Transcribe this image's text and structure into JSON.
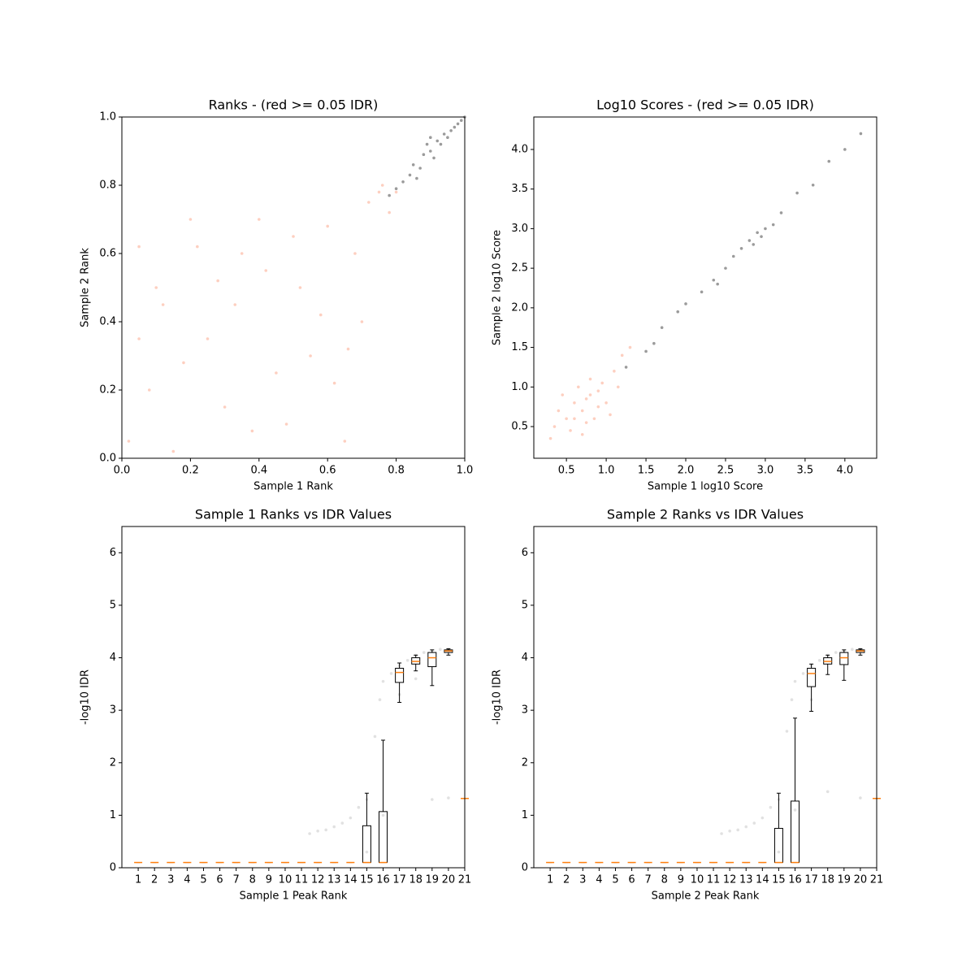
{
  "chart_data": [
    {
      "type": "scatter",
      "title": "Ranks - (red >= 0.05 IDR)",
      "x_label": "Sample 1 Rank",
      "y_label": "Sample 2 Rank",
      "xlim": [
        0,
        1
      ],
      "ylim": [
        0,
        1
      ],
      "xticks": [
        {
          "value": 0,
          "label": "0.0"
        },
        0.2,
        0.4,
        0.6,
        0.8,
        {
          "value": 1,
          "label": "1.0"
        }
      ],
      "yticks": [
        {
          "value": 0,
          "label": "0.0"
        },
        0.2,
        0.4,
        0.6,
        0.8,
        {
          "value": 1,
          "label": "1.0"
        }
      ],
      "series": [
        {
          "color": "#fa9474",
          "x": [
            0.05,
            0.12,
            0.2,
            0.3,
            0.42,
            0.55,
            0.65,
            0.08,
            0.25,
            0.35,
            0.48,
            0.6,
            0.7,
            0.75,
            0.78,
            0.02,
            0.15,
            0.33,
            0.45,
            0.52,
            0.62,
            0.68,
            0.72,
            0.1,
            0.18,
            0.28,
            0.38,
            0.58,
            0.66,
            0.4,
            0.22,
            0.05,
            0.5,
            0.8,
            0.76
          ],
          "y": [
            0.62,
            0.45,
            0.7,
            0.15,
            0.55,
            0.3,
            0.05,
            0.2,
            0.35,
            0.6,
            0.1,
            0.68,
            0.4,
            0.78,
            0.72,
            0.05,
            0.02,
            0.45,
            0.25,
            0.5,
            0.22,
            0.6,
            0.75,
            0.5,
            0.28,
            0.52,
            0.08,
            0.42,
            0.32,
            0.7,
            0.62,
            0.35,
            0.65,
            0.78,
            0.8
          ]
        },
        {
          "color": "#222222",
          "x": [
            0.78,
            0.8,
            0.82,
            0.84,
            0.85,
            0.87,
            0.88,
            0.9,
            0.91,
            0.92,
            0.93,
            0.94,
            0.95,
            0.96,
            0.97,
            0.98,
            0.99,
            1.0,
            0.89,
            0.9,
            0.86
          ],
          "y": [
            0.77,
            0.79,
            0.81,
            0.83,
            0.86,
            0.85,
            0.89,
            0.9,
            0.88,
            0.93,
            0.92,
            0.95,
            0.94,
            0.96,
            0.97,
            0.98,
            0.99,
            1.0,
            0.92,
            0.94,
            0.82
          ]
        }
      ]
    },
    {
      "type": "scatter",
      "title": "Log10 Scores - (red >= 0.05 IDR)",
      "x_label": "Sample 1 log10 Score",
      "y_label": "Sample 2 log10 Score",
      "xlim": [
        0.09,
        4.4
      ],
      "ylim": [
        0.1,
        4.41
      ],
      "xticks": [
        0.5,
        {
          "value": 1,
          "label": "1.0"
        },
        1.5,
        {
          "value": 2,
          "label": "2.0"
        },
        2.5,
        {
          "value": 3,
          "label": "3.0"
        },
        3.5,
        {
          "value": 4,
          "label": "4.0"
        }
      ],
      "yticks": [
        0.5,
        {
          "value": 1,
          "label": "1.0"
        },
        1.5,
        {
          "value": 2,
          "label": "2.0"
        },
        2.5,
        {
          "value": 3,
          "label": "3.0"
        },
        3.5,
        {
          "value": 4,
          "label": "4.0"
        }
      ],
      "series": [
        {
          "color": "#fa9474",
          "x": [
            0.5,
            0.6,
            0.7,
            0.8,
            0.9,
            0.55,
            0.75,
            0.65,
            0.85,
            1.0,
            0.4,
            0.35,
            0.95,
            1.1,
            1.2,
            0.45,
            0.7,
            0.8,
            1.05,
            0.6,
            0.75,
            0.9,
            1.3,
            1.15,
            0.3
          ],
          "y": [
            0.6,
            0.8,
            0.7,
            0.9,
            0.75,
            0.45,
            0.55,
            1.0,
            0.6,
            0.8,
            0.7,
            0.5,
            1.05,
            1.2,
            1.4,
            0.9,
            0.4,
            1.1,
            0.65,
            0.6,
            0.85,
            0.95,
            1.5,
            1.0,
            0.35
          ]
        },
        {
          "color": "#222222",
          "x": [
            1.25,
            1.5,
            1.7,
            1.9,
            2.0,
            2.2,
            2.35,
            2.5,
            2.6,
            2.7,
            2.8,
            2.85,
            2.9,
            2.95,
            3.0,
            3.1,
            3.2,
            3.4,
            3.6,
            3.8,
            4.0,
            4.2,
            2.4,
            1.6
          ],
          "y": [
            1.25,
            1.45,
            1.75,
            1.95,
            2.05,
            2.2,
            2.35,
            2.5,
            2.65,
            2.75,
            2.85,
            2.8,
            2.95,
            2.9,
            3.0,
            3.05,
            3.2,
            3.45,
            3.55,
            3.85,
            4.0,
            4.2,
            2.3,
            1.55
          ]
        }
      ]
    },
    {
      "type": "box",
      "title": "Sample 1 Ranks vs IDR Values",
      "x_label": "Sample 1 Peak Rank",
      "y_label": "-log10 IDR",
      "xlim": [
        0,
        21
      ],
      "ylim": [
        0,
        6.5
      ],
      "xticks": [
        1,
        2,
        3,
        4,
        5,
        6,
        7,
        8,
        9,
        10,
        11,
        12,
        13,
        14,
        15,
        16,
        17,
        18,
        19,
        20,
        21
      ],
      "yticks": [
        0,
        1,
        2,
        3,
        4,
        5,
        6
      ],
      "points": {
        "color": "#888888",
        "x": [
          11.5,
          12,
          12.5,
          13,
          13.5,
          14,
          14.5,
          15,
          15.5,
          15.8,
          16,
          16.5,
          17,
          17.5,
          18,
          18.5,
          19,
          19.5,
          20,
          19,
          20,
          18,
          17,
          16,
          15
        ],
        "y": [
          0.65,
          0.7,
          0.72,
          0.78,
          0.85,
          0.95,
          1.15,
          1.3,
          2.5,
          3.2,
          3.55,
          3.7,
          3.85,
          3.95,
          4.05,
          4.1,
          4.13,
          4.16,
          4.17,
          1.3,
          1.33,
          3.6,
          3.3,
          1.0,
          0.3
        ]
      },
      "positions": [
        1,
        2,
        3,
        4,
        5,
        6,
        7,
        8,
        9,
        10,
        11,
        12,
        13,
        14,
        15,
        16,
        17,
        18,
        19,
        20,
        21
      ],
      "boxes": [
        {
          "whislo": 0.1,
          "q1": 0.1,
          "med": 0.1,
          "q3": 0.1,
          "whishi": 0.1
        },
        {
          "whislo": 0.1,
          "q1": 0.1,
          "med": 0.1,
          "q3": 0.1,
          "whishi": 0.1
        },
        {
          "whislo": 0.1,
          "q1": 0.1,
          "med": 0.1,
          "q3": 0.1,
          "whishi": 0.1
        },
        {
          "whislo": 0.1,
          "q1": 0.1,
          "med": 0.1,
          "q3": 0.1,
          "whishi": 0.1
        },
        {
          "whislo": 0.1,
          "q1": 0.1,
          "med": 0.1,
          "q3": 0.1,
          "whishi": 0.1
        },
        {
          "whislo": 0.1,
          "q1": 0.1,
          "med": 0.1,
          "q3": 0.1,
          "whishi": 0.1
        },
        {
          "whislo": 0.1,
          "q1": 0.1,
          "med": 0.1,
          "q3": 0.1,
          "whishi": 0.1
        },
        {
          "whislo": 0.1,
          "q1": 0.1,
          "med": 0.1,
          "q3": 0.1,
          "whishi": 0.1
        },
        {
          "whislo": 0.1,
          "q1": 0.1,
          "med": 0.1,
          "q3": 0.1,
          "whishi": 0.1
        },
        {
          "whislo": 0.1,
          "q1": 0.1,
          "med": 0.1,
          "q3": 0.1,
          "whishi": 0.1
        },
        {
          "whislo": 0.1,
          "q1": 0.1,
          "med": 0.1,
          "q3": 0.1,
          "whishi": 0.1
        },
        {
          "whislo": 0.1,
          "q1": 0.1,
          "med": 0.1,
          "q3": 0.1,
          "whishi": 0.1
        },
        {
          "whislo": 0.1,
          "q1": 0.1,
          "med": 0.1,
          "q3": 0.1,
          "whishi": 0.1
        },
        {
          "whislo": 0.1,
          "q1": 0.1,
          "med": 0.1,
          "q3": 0.1,
          "whishi": 0.1
        },
        {
          "whislo": 0.1,
          "q1": 0.1,
          "med": 0.1,
          "q3": 0.8,
          "whishi": 1.42
        },
        {
          "whislo": 0.1,
          "q1": 0.1,
          "med": 0.1,
          "q3": 1.07,
          "whishi": 2.43
        },
        {
          "whislo": 3.15,
          "q1": 3.53,
          "med": 3.72,
          "q3": 3.8,
          "whishi": 3.9
        },
        {
          "whislo": 3.75,
          "q1": 3.88,
          "med": 3.93,
          "q3": 4.0,
          "whishi": 4.05
        },
        {
          "whislo": 3.47,
          "q1": 3.83,
          "med": 4.0,
          "q3": 4.1,
          "whishi": 4.15
        },
        {
          "whislo": 4.05,
          "q1": 4.1,
          "med": 4.13,
          "q3": 4.15,
          "whishi": 4.17
        },
        {
          "whislo": 1.32,
          "q1": 1.32,
          "med": 1.32,
          "q3": 1.32,
          "whishi": 1.32
        }
      ]
    },
    {
      "type": "box",
      "title": "Sample 2 Ranks vs IDR Values",
      "x_label": "Sample 2 Peak Rank",
      "y_label": "-log10 IDR",
      "xlim": [
        0,
        21
      ],
      "ylim": [
        0,
        6.5
      ],
      "xticks": [
        1,
        2,
        3,
        4,
        5,
        6,
        7,
        8,
        9,
        10,
        11,
        12,
        13,
        14,
        15,
        16,
        17,
        18,
        19,
        20,
        21
      ],
      "yticks": [
        0,
        1,
        2,
        3,
        4,
        5,
        6
      ],
      "points": {
        "color": "#888888",
        "x": [
          11.5,
          12,
          12.5,
          13,
          13.5,
          14,
          14.5,
          15,
          15.5,
          15.8,
          16,
          16.5,
          17,
          17.5,
          18,
          18.5,
          19,
          19.5,
          20,
          20,
          18,
          17,
          16,
          15
        ],
        "y": [
          0.65,
          0.7,
          0.72,
          0.78,
          0.85,
          0.95,
          1.15,
          1.3,
          2.6,
          3.2,
          3.55,
          3.7,
          3.85,
          3.95,
          4.05,
          4.1,
          4.13,
          4.16,
          4.17,
          1.33,
          1.45,
          3.2,
          1.1,
          0.3
        ]
      },
      "positions": [
        1,
        2,
        3,
        4,
        5,
        6,
        7,
        8,
        9,
        10,
        11,
        12,
        13,
        14,
        15,
        16,
        17,
        18,
        19,
        20,
        21
      ],
      "boxes": [
        {
          "whislo": 0.1,
          "q1": 0.1,
          "med": 0.1,
          "q3": 0.1,
          "whishi": 0.1
        },
        {
          "whislo": 0.1,
          "q1": 0.1,
          "med": 0.1,
          "q3": 0.1,
          "whishi": 0.1
        },
        {
          "whislo": 0.1,
          "q1": 0.1,
          "med": 0.1,
          "q3": 0.1,
          "whishi": 0.1
        },
        {
          "whislo": 0.1,
          "q1": 0.1,
          "med": 0.1,
          "q3": 0.1,
          "whishi": 0.1
        },
        {
          "whislo": 0.1,
          "q1": 0.1,
          "med": 0.1,
          "q3": 0.1,
          "whishi": 0.1
        },
        {
          "whislo": 0.1,
          "q1": 0.1,
          "med": 0.1,
          "q3": 0.1,
          "whishi": 0.1
        },
        {
          "whislo": 0.1,
          "q1": 0.1,
          "med": 0.1,
          "q3": 0.1,
          "whishi": 0.1
        },
        {
          "whislo": 0.1,
          "q1": 0.1,
          "med": 0.1,
          "q3": 0.1,
          "whishi": 0.1
        },
        {
          "whislo": 0.1,
          "q1": 0.1,
          "med": 0.1,
          "q3": 0.1,
          "whishi": 0.1
        },
        {
          "whislo": 0.1,
          "q1": 0.1,
          "med": 0.1,
          "q3": 0.1,
          "whishi": 0.1
        },
        {
          "whislo": 0.1,
          "q1": 0.1,
          "med": 0.1,
          "q3": 0.1,
          "whishi": 0.1
        },
        {
          "whislo": 0.1,
          "q1": 0.1,
          "med": 0.1,
          "q3": 0.1,
          "whishi": 0.1
        },
        {
          "whislo": 0.1,
          "q1": 0.1,
          "med": 0.1,
          "q3": 0.1,
          "whishi": 0.1
        },
        {
          "whislo": 0.1,
          "q1": 0.1,
          "med": 0.1,
          "q3": 0.1,
          "whishi": 0.1
        },
        {
          "whislo": 0.1,
          "q1": 0.1,
          "med": 0.1,
          "q3": 0.75,
          "whishi": 1.42
        },
        {
          "whislo": 0.1,
          "q1": 0.1,
          "med": 0.1,
          "q3": 1.27,
          "whishi": 2.85
        },
        {
          "whislo": 2.98,
          "q1": 3.45,
          "med": 3.7,
          "q3": 3.8,
          "whishi": 3.88
        },
        {
          "whislo": 3.68,
          "q1": 3.88,
          "med": 3.93,
          "q3": 4.0,
          "whishi": 4.05
        },
        {
          "whislo": 3.57,
          "q1": 3.87,
          "med": 4.0,
          "q3": 4.1,
          "whishi": 4.15
        },
        {
          "whislo": 4.05,
          "q1": 4.1,
          "med": 4.13,
          "q3": 4.15,
          "whishi": 4.17
        },
        {
          "whislo": 1.32,
          "q1": 1.32,
          "med": 1.32,
          "q3": 1.32,
          "whishi": 1.32
        }
      ]
    }
  ]
}
